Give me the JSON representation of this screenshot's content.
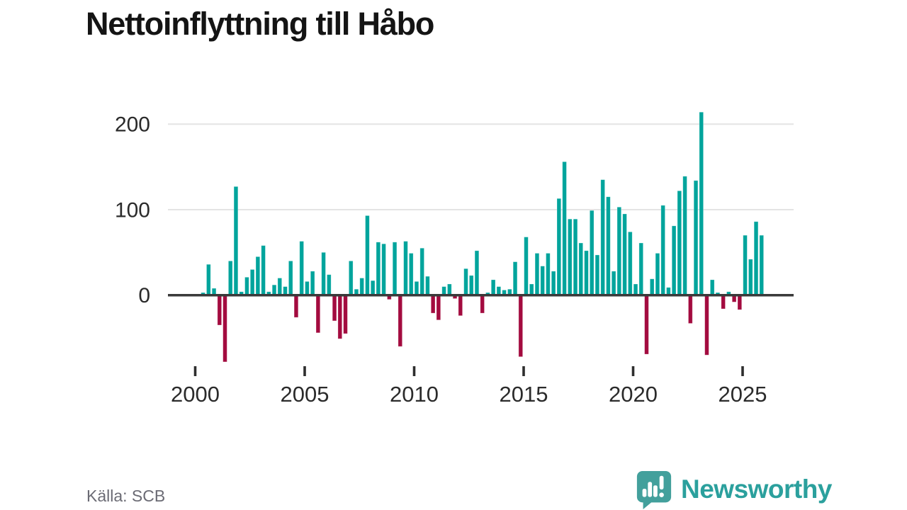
{
  "title": "Nettoinflyttning till Håbo",
  "source": "Källa: SCB",
  "branding": {
    "name": "Newsworthy",
    "icon": "newsworthy-speech-bubble-chart-icon"
  },
  "colors": {
    "positive": "#00a49c",
    "negative": "#a30b3f",
    "grid": "#e4e4e4",
    "zero_axis": "#3a3a3a",
    "tick": "#2e2e2e",
    "axis_text": "#2b2b2b",
    "title_text": "#141414",
    "muted_text": "#6b6b74",
    "brand_teal": "#2ba09d",
    "brand_bubble": "#43a09c"
  },
  "chart_data": {
    "type": "bar",
    "title": "Nettoinflyttning till Håbo",
    "ylabel": "",
    "xlabel": "",
    "unit_hint": "net migration per quarter (persons)",
    "period": "quarterly",
    "start_period": "2000-Q2",
    "end_period": "2025-Q4",
    "x_start_decimal": 2000.25,
    "x_step": 0.25,
    "ylim": [
      -95,
      230
    ],
    "grid": "horizontal-only",
    "legend": "none",
    "y_axis": {
      "ticks": [
        0,
        100,
        200
      ],
      "tick_labels": [
        "0",
        "100",
        "200"
      ],
      "gridlines": [
        100,
        200
      ]
    },
    "x_axis": {
      "ticks": [
        2000,
        2005,
        2010,
        2015,
        2020,
        2025
      ],
      "tick_labels": [
        "2000",
        "2005",
        "2010",
        "2015",
        "2020",
        "2025"
      ]
    },
    "values": [
      3,
      36,
      8,
      -35,
      -78,
      40,
      127,
      4,
      21,
      30,
      45,
      58,
      4,
      12,
      20,
      10,
      40,
      -26,
      63,
      16,
      28,
      -44,
      50,
      24,
      -30,
      -51,
      -45,
      40,
      7,
      20,
      93,
      17,
      62,
      60,
      -5,
      62,
      -60,
      63,
      49,
      16,
      55,
      22,
      -21,
      -29,
      10,
      13,
      -4,
      -24,
      31,
      23,
      52,
      -21,
      3,
      18,
      10,
      6,
      7,
      39,
      -72,
      68,
      13,
      49,
      34,
      49,
      28,
      113,
      156,
      89,
      89,
      61,
      52,
      99,
      47,
      135,
      115,
      28,
      103,
      95,
      74,
      13,
      61,
      -69,
      19,
      49,
      105,
      9,
      81,
      122,
      139,
      -33,
      134,
      214,
      -70,
      18,
      3,
      -16,
      4,
      -8,
      -17,
      70,
      42,
      86,
      70
    ]
  }
}
